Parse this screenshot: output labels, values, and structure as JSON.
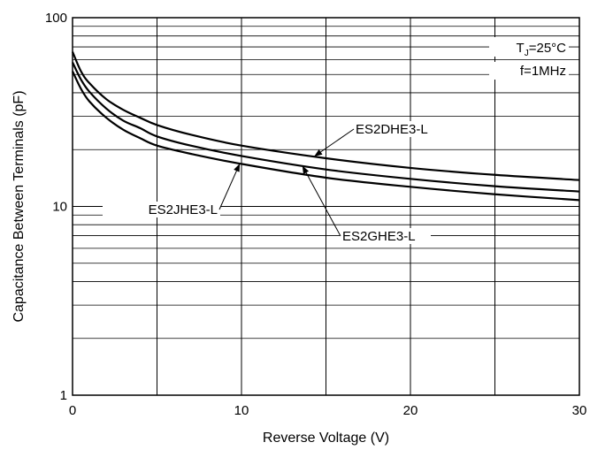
{
  "chart_data": {
    "type": "line",
    "xlabel": "Reverse Voltage (V)",
    "ylabel": "Capacitance Between Terminals (pF)",
    "xlim": [
      0,
      30
    ],
    "ylim": [
      1,
      100
    ],
    "y_scale": "log",
    "grid": true,
    "x_ticks": [
      0,
      10,
      20,
      30
    ],
    "x_tick_labels": [
      "0",
      "10",
      "20",
      "30"
    ],
    "y_ticks": [
      1,
      10,
      100
    ],
    "y_tick_labels": [
      "1",
      "10",
      "100"
    ],
    "conditions": {
      "tj_symbol": "T",
      "tj_subscript": "J",
      "tj_value": "=25°C",
      "frequency": "f=1MHz"
    },
    "series": [
      {
        "name": "ES2DHE3-L",
        "x": [
          0,
          0.5,
          1,
          2,
          3,
          4,
          5,
          7,
          10,
          15,
          20,
          25,
          30
        ],
        "y": [
          66,
          52,
          45,
          37,
          32.5,
          29.5,
          27,
          24,
          21,
          18,
          16,
          14.7,
          13.8
        ]
      },
      {
        "name": "ES2GHE3-L",
        "x": [
          0,
          0.5,
          1,
          2,
          3,
          4,
          5,
          7,
          10,
          15,
          20,
          25,
          30
        ],
        "y": [
          58,
          47,
          40.5,
          33,
          28.5,
          26,
          23.5,
          21,
          18.5,
          15.7,
          14,
          12.8,
          12
        ]
      },
      {
        "name": "ES2JHE3-L",
        "x": [
          0,
          0.5,
          1,
          2,
          3,
          4,
          5,
          7,
          10,
          15,
          20,
          25,
          30
        ],
        "y": [
          52,
          42,
          36,
          29.5,
          25.5,
          23,
          21,
          19,
          16.8,
          14.2,
          12.7,
          11.6,
          10.8
        ]
      }
    ]
  }
}
